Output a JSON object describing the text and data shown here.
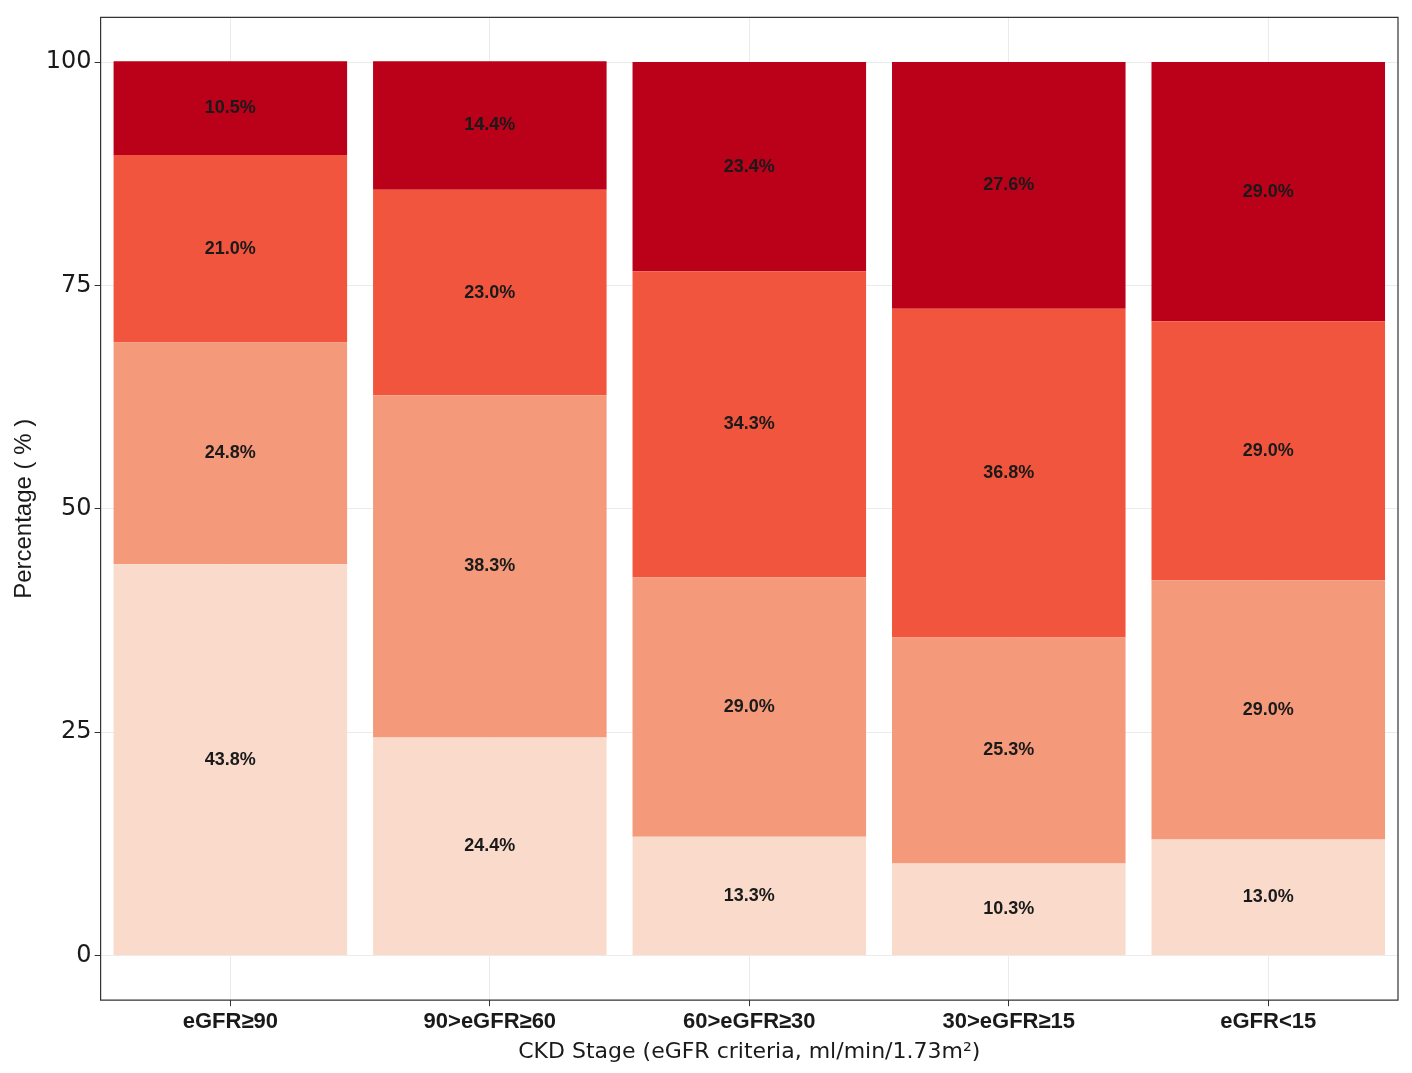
{
  "chart_data": {
    "type": "bar",
    "stacked": true,
    "xlabel": "CKD Stage (eGFR criteria, ml/min/1.73m²)",
    "ylabel": "Percentage ( % )",
    "categories": [
      "eGFR≥90",
      "90>eGFR≥60",
      "60>eGFR≥30",
      "30>eGFR≥15",
      "eGFR<15"
    ],
    "ylim": [
      -5,
      105
    ],
    "yticks": [
      0,
      25,
      50,
      75,
      100
    ],
    "grid": true,
    "legend": false,
    "series": [
      {
        "color": "#fadbcb",
        "values": [
          43.8,
          24.4,
          13.3,
          10.3,
          13.0
        ],
        "value_labels": [
          "43.8%",
          "24.4%",
          "13.3%",
          "10.3%",
          "13.0%"
        ]
      },
      {
        "color": "#f4997a",
        "values": [
          24.8,
          38.3,
          29.0,
          25.3,
          29.0
        ],
        "value_labels": [
          "24.8%",
          "38.3%",
          "29.0%",
          "25.3%",
          "29.0%"
        ]
      },
      {
        "color": "#f2553d",
        "values": [
          21.0,
          23.0,
          34.3,
          36.8,
          29.0
        ],
        "value_labels": [
          "21.0%",
          "23.0%",
          "34.3%",
          "36.8%",
          "29.0%"
        ]
      },
      {
        "color": "#bb0019",
        "values": [
          10.5,
          14.4,
          23.4,
          27.6,
          29.0
        ],
        "value_labels": [
          "10.5%",
          "14.4%",
          "23.4%",
          "27.6%",
          "29.0%"
        ]
      }
    ]
  }
}
